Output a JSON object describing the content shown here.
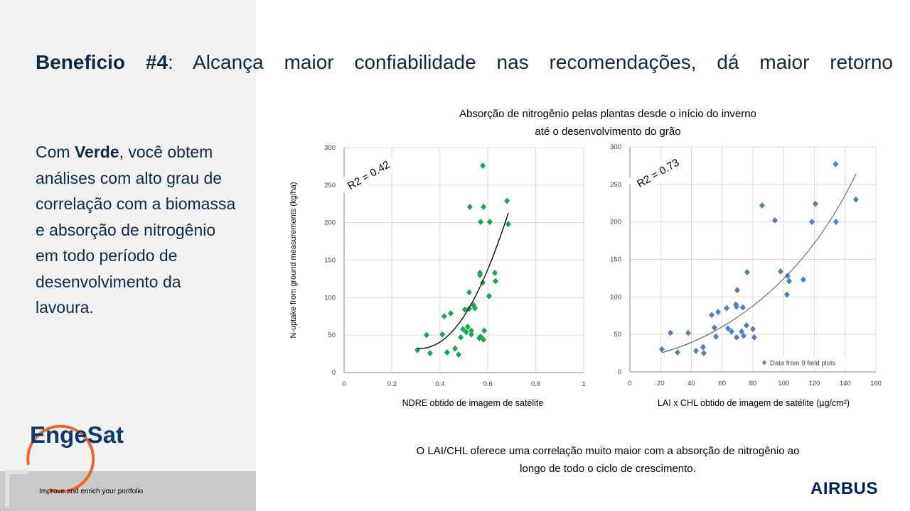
{
  "heading": {
    "bold": "Beneficio #4",
    "rest": ": Alcança maior confiabilidade nas recomendações, dá maior retorno"
  },
  "body": {
    "before": "Com ",
    "bold": "Verde",
    "after": ", você obtem análises com alto grau de correlação com a biomassa e absorção de nitrogênio em todo período de desenvolvimento da lavoura."
  },
  "figure_title": "Absorção de nitrogênio pelas plantas desde o início do inverno até o desenvolvimento do grão",
  "caption": "O LAI/CHL oferece uma correlação muito maior com a absorção de nitrogênio ao longo de todo o ciclo de crescimento.",
  "logo": "EngeSat",
  "footer": "Improve and enrich your portfolio",
  "brand": "AIRBUS",
  "chart_data": [
    {
      "type": "scatter",
      "xlabel": "NDRE obtido de imagem de satélite",
      "ylabel": "N-uptake from ground measurements (kg/ha)",
      "annotation": "R2 = 0.42",
      "grid": true,
      "xlim": [
        0,
        1
      ],
      "xticks": [
        0,
        0.2,
        0.4,
        0.6,
        0.8,
        1
      ],
      "ylim": [
        0,
        300
      ],
      "yticks": [
        0,
        50,
        100,
        150,
        200,
        250,
        300
      ],
      "x": [
        0.306,
        0.344,
        0.359,
        0.41,
        0.418,
        0.445,
        0.43,
        0.463,
        0.478,
        0.487,
        0.496,
        0.504,
        0.51,
        0.516,
        0.522,
        0.522,
        0.531,
        0.531,
        0.54,
        0.546,
        0.525,
        0.564,
        0.567,
        0.567,
        0.57,
        0.57,
        0.579,
        0.582,
        0.582,
        0.585,
        0.579,
        0.605,
        0.608,
        0.629,
        0.632,
        0.68,
        0.685
      ],
      "series": [
        {
          "color": "#1aa64a",
          "values": [
            30,
            50,
            26,
            51,
            75,
            79,
            27,
            32,
            24,
            47,
            58,
            84,
            54,
            61,
            85,
            107,
            51,
            56,
            90,
            86,
            221,
            46,
            133,
            130,
            201,
            48,
            276,
            221,
            44,
            56,
            120,
            102,
            201,
            133,
            122,
            229,
            198
          ]
        }
      ]
    },
    {
      "type": "scatter",
      "xlabel": "LAI x CHL obtido de imagem de satélite (µg/cm²)",
      "annotation": "R2 = 0.73",
      "grid": true,
      "xlim": [
        0,
        160
      ],
      "xticks": [
        0,
        20,
        40,
        60,
        80,
        100,
        120,
        140,
        160
      ],
      "ylim": [
        0,
        300
      ],
      "yticks": [
        0,
        50,
        100,
        150,
        200,
        250,
        300
      ],
      "x": [
        20.8,
        26.4,
        31,
        37.9,
        43,
        47.6,
        48.1,
        53.2,
        55,
        56,
        57.4,
        62.9,
        63.8,
        66.1,
        68.9,
        69.4,
        69.4,
        69.8,
        72.6,
        73.5,
        74,
        75.8,
        76.3,
        80,
        80.9,
        86,
        94.3,
        98,
        102.1,
        102.6,
        103.6,
        112.8,
        118.4,
        120.7,
        133.8,
        134.1,
        147
      ],
      "series": [
        {
          "name": "Data from 9 field plots",
          "color": "#4f81bd",
          "values": [
            30,
            52,
            26,
            52,
            28,
            33,
            25,
            76,
            59,
            47,
            80,
            85,
            58,
            54,
            90,
            87,
            46,
            109,
            54,
            86,
            48,
            62,
            133,
            57,
            46,
            222,
            202,
            134,
            103,
            128,
            121,
            123,
            200,
            224,
            277,
            200,
            230
          ]
        }
      ]
    }
  ]
}
